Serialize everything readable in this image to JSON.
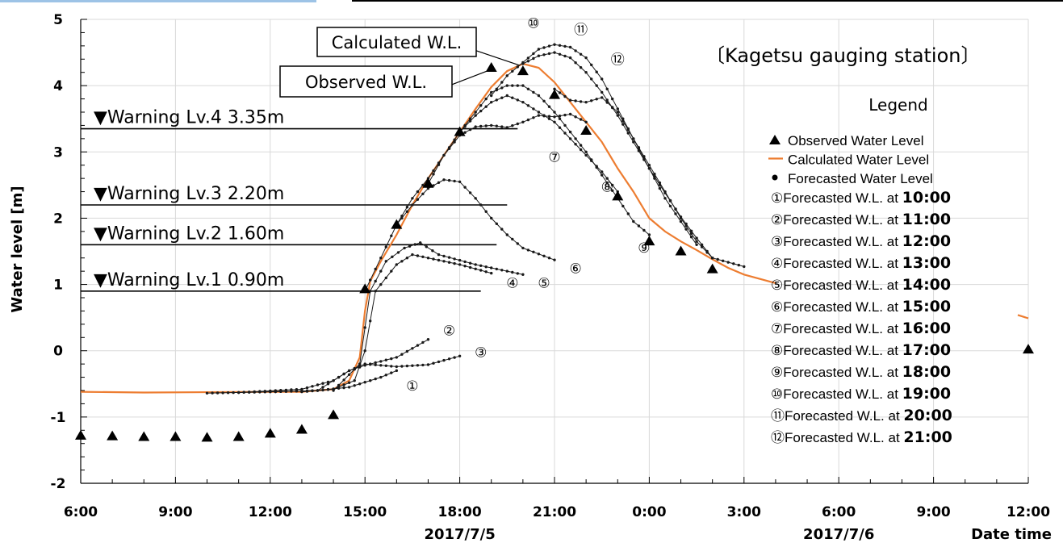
{
  "chart_data": {
    "type": "line",
    "title": "",
    "station_label": "〔Kagetsu gauging station〕",
    "ylabel": "Water level [m]",
    "xlabel": "Date time",
    "ylim": [
      -2,
      5
    ],
    "yticks": [
      -2,
      -1,
      0,
      1,
      2,
      3,
      4,
      5
    ],
    "xlim": [
      "2017-07-05 06:00",
      "2017-07-06 12:00"
    ],
    "xticks": [
      "6:00",
      "9:00",
      "12:00",
      "15:00",
      "18:00",
      "21:00",
      "0:00",
      "3:00",
      "6:00",
      "9:00",
      "12:00"
    ],
    "date_labels": [
      {
        "text": "2017/7/5",
        "at": "2017-07-05 18:00"
      },
      {
        "text": "2017/7/6",
        "at": "2017-07-06 06:00"
      }
    ],
    "grid": true,
    "warning_levels": [
      {
        "label": "▼Warning Lv.4 3.35m",
        "value": 3.35,
        "end": "2017-07-05 19:50"
      },
      {
        "label": "▼Warning Lv.3 2.20m",
        "value": 2.2,
        "end": "2017-07-05 19:30"
      },
      {
        "label": "▼Warning Lv.2 1.60m",
        "value": 1.6,
        "end": "2017-07-05 19:10"
      },
      {
        "label": "▼Warning Lv.1 0.90m",
        "value": 0.9,
        "end": "2017-07-05 18:40"
      }
    ],
    "callouts": [
      {
        "text": "Calculated W.L.",
        "x": "2017-07-05 20:00",
        "y": 4.33
      },
      {
        "text": "Observed W.L.",
        "x": "2017-07-05 19:00",
        "y": 4.25
      }
    ],
    "observed": [
      {
        "x": "2017-07-05 06:00",
        "y": -1.28
      },
      {
        "x": "2017-07-05 07:00",
        "y": -1.29
      },
      {
        "x": "2017-07-05 08:00",
        "y": -1.3
      },
      {
        "x": "2017-07-05 09:00",
        "y": -1.3
      },
      {
        "x": "2017-07-05 10:00",
        "y": -1.31
      },
      {
        "x": "2017-07-05 11:00",
        "y": -1.3
      },
      {
        "x": "2017-07-05 12:00",
        "y": -1.25
      },
      {
        "x": "2017-07-05 13:00",
        "y": -1.19
      },
      {
        "x": "2017-07-05 14:00",
        "y": -0.97
      },
      {
        "x": "2017-07-05 15:00",
        "y": 0.93
      },
      {
        "x": "2017-07-05 16:00",
        "y": 1.9
      },
      {
        "x": "2017-07-05 17:00",
        "y": 2.52
      },
      {
        "x": "2017-07-05 18:00",
        "y": 3.3
      },
      {
        "x": "2017-07-05 19:00",
        "y": 4.27
      },
      {
        "x": "2017-07-05 20:00",
        "y": 4.22
      },
      {
        "x": "2017-07-05 21:00",
        "y": 3.86
      },
      {
        "x": "2017-07-05 22:00",
        "y": 3.32
      },
      {
        "x": "2017-07-05 23:00",
        "y": 2.33
      },
      {
        "x": "2017-07-06 00:00",
        "y": 1.65
      },
      {
        "x": "2017-07-06 01:00",
        "y": 1.5
      },
      {
        "x": "2017-07-06 02:00",
        "y": 1.23
      },
      {
        "x": "2017-07-06 12:00",
        "y": 0.02
      }
    ],
    "calculated": [
      {
        "x": "2017-07-05 06:00",
        "y": -0.62
      },
      {
        "x": "2017-07-05 08:00",
        "y": -0.63
      },
      {
        "x": "2017-07-05 12:00",
        "y": -0.62
      },
      {
        "x": "2017-07-05 13:00",
        "y": -0.62
      },
      {
        "x": "2017-07-05 14:00",
        "y": -0.58
      },
      {
        "x": "2017-07-05 14:30",
        "y": -0.45
      },
      {
        "x": "2017-07-05 14:50",
        "y": -0.1
      },
      {
        "x": "2017-07-05 15:00",
        "y": 0.6
      },
      {
        "x": "2017-07-05 15:10",
        "y": 1.05
      },
      {
        "x": "2017-07-05 15:30",
        "y": 1.35
      },
      {
        "x": "2017-07-05 16:00",
        "y": 1.75
      },
      {
        "x": "2017-07-05 16:30",
        "y": 2.2
      },
      {
        "x": "2017-07-05 17:00",
        "y": 2.6
      },
      {
        "x": "2017-07-05 17:30",
        "y": 2.95
      },
      {
        "x": "2017-07-05 18:00",
        "y": 3.3
      },
      {
        "x": "2017-07-05 18:30",
        "y": 3.65
      },
      {
        "x": "2017-07-05 19:00",
        "y": 3.98
      },
      {
        "x": "2017-07-05 19:30",
        "y": 4.22
      },
      {
        "x": "2017-07-05 20:00",
        "y": 4.33
      },
      {
        "x": "2017-07-05 20:30",
        "y": 4.27
      },
      {
        "x": "2017-07-05 21:00",
        "y": 4.05
      },
      {
        "x": "2017-07-05 21:30",
        "y": 3.75
      },
      {
        "x": "2017-07-05 22:00",
        "y": 3.45
      },
      {
        "x": "2017-07-05 22:30",
        "y": 3.15
      },
      {
        "x": "2017-07-05 23:00",
        "y": 2.75
      },
      {
        "x": "2017-07-05 23:30",
        "y": 2.4
      },
      {
        "x": "2017-07-06 00:00",
        "y": 2.0
      },
      {
        "x": "2017-07-06 00:30",
        "y": 1.8
      },
      {
        "x": "2017-07-06 01:00",
        "y": 1.65
      },
      {
        "x": "2017-07-06 01:30",
        "y": 1.52
      },
      {
        "x": "2017-07-06 02:00",
        "y": 1.38
      },
      {
        "x": "2017-07-06 02:30",
        "y": 1.25
      },
      {
        "x": "2017-07-06 03:00",
        "y": 1.15
      },
      {
        "x": "2017-07-06 04:00",
        "y": 1.02
      }
    ],
    "calculated_tail": [
      {
        "x": "2017-07-06 11:40",
        "y": 0.54
      },
      {
        "x": "2017-07-06 12:00",
        "y": 0.49
      }
    ],
    "forecasts": [
      {
        "label": "①",
        "issued": "10:00",
        "label_x": "2017-07-05 16:30",
        "label_y": -0.5,
        "points": [
          [
            "2017-07-05 10:00",
            -0.64
          ],
          [
            "2017-07-05 12:00",
            -0.62
          ],
          [
            "2017-07-05 13:30",
            -0.6
          ],
          [
            "2017-07-05 14:30",
            -0.55
          ],
          [
            "2017-07-05 15:30",
            -0.4
          ],
          [
            "2017-07-05 16:00",
            -0.3
          ]
        ]
      },
      {
        "label": "②",
        "issued": "11:00",
        "label_x": "2017-07-05 17:40",
        "label_y": 0.33,
        "points": [
          [
            "2017-07-05 11:00",
            -0.63
          ],
          [
            "2017-07-05 13:00",
            -0.58
          ],
          [
            "2017-07-05 14:00",
            -0.45
          ],
          [
            "2017-07-05 14:30",
            -0.3
          ],
          [
            "2017-07-05 15:00",
            -0.22
          ],
          [
            "2017-07-05 16:00",
            -0.1
          ],
          [
            "2017-07-05 17:00",
            0.17
          ]
        ]
      },
      {
        "label": "③",
        "issued": "12:00",
        "label_x": "2017-07-05 18:40",
        "label_y": 0.0,
        "points": [
          [
            "2017-07-05 12:00",
            -0.62
          ],
          [
            "2017-07-05 13:30",
            -0.6
          ],
          [
            "2017-07-05 14:30",
            -0.3
          ],
          [
            "2017-07-05 15:00",
            -0.2
          ],
          [
            "2017-07-05 16:00",
            -0.24
          ],
          [
            "2017-07-05 17:00",
            -0.21
          ],
          [
            "2017-07-05 18:00",
            -0.08
          ]
        ]
      },
      {
        "label": "④",
        "issued": "13:00",
        "label_x": "2017-07-05 19:40",
        "label_y": 1.05,
        "points": [
          [
            "2017-07-05 13:00",
            -0.62
          ],
          [
            "2017-07-05 14:00",
            -0.58
          ],
          [
            "2017-07-05 14:40",
            -0.45
          ],
          [
            "2017-07-05 15:00",
            0.0
          ],
          [
            "2017-07-05 15:20",
            0.9
          ],
          [
            "2017-07-05 16:00",
            1.3
          ],
          [
            "2017-07-05 16:30",
            1.45
          ],
          [
            "2017-07-05 17:00",
            1.4
          ],
          [
            "2017-07-05 18:00",
            1.3
          ],
          [
            "2017-07-05 19:00",
            1.17
          ]
        ]
      },
      {
        "label": "⑤",
        "issued": "14:00",
        "label_x": "2017-07-05 20:40",
        "label_y": 1.05,
        "points": [
          [
            "2017-07-05 14:00",
            -0.6
          ],
          [
            "2017-07-05 14:50",
            -0.2
          ],
          [
            "2017-07-05 15:10",
            0.9
          ],
          [
            "2017-07-05 15:40",
            1.35
          ],
          [
            "2017-07-05 16:15",
            1.55
          ],
          [
            "2017-07-05 16:45",
            1.63
          ],
          [
            "2017-07-05 17:20",
            1.45
          ],
          [
            "2017-07-05 18:30",
            1.3
          ],
          [
            "2017-07-05 19:30",
            1.2
          ],
          [
            "2017-07-05 20:00",
            1.15
          ]
        ]
      },
      {
        "label": "⑥",
        "issued": "15:00",
        "label_x": "2017-07-05 21:40",
        "label_y": 1.27,
        "points": [
          [
            "2017-07-05 15:00",
            0.9
          ],
          [
            "2017-07-05 15:30",
            1.4
          ],
          [
            "2017-07-05 16:00",
            1.9
          ],
          [
            "2017-07-05 16:30",
            2.2
          ],
          [
            "2017-07-05 17:00",
            2.45
          ],
          [
            "2017-07-05 17:30",
            2.58
          ],
          [
            "2017-07-05 18:00",
            2.55
          ],
          [
            "2017-07-05 18:30",
            2.3
          ],
          [
            "2017-07-05 19:00",
            2.0
          ],
          [
            "2017-07-05 19:30",
            1.75
          ],
          [
            "2017-07-05 20:00",
            1.55
          ],
          [
            "2017-07-05 21:00",
            1.37
          ]
        ]
      },
      {
        "label": "⑦",
        "issued": "16:00",
        "label_x": "2017-07-05 21:00",
        "label_y": 2.95,
        "points": [
          [
            "2017-07-05 16:00",
            1.9
          ],
          [
            "2017-07-05 16:30",
            2.3
          ],
          [
            "2017-07-05 17:00",
            2.6
          ],
          [
            "2017-07-05 17:30",
            2.95
          ],
          [
            "2017-07-05 18:00",
            3.25
          ],
          [
            "2017-07-05 18:30",
            3.38
          ],
          [
            "2017-07-05 19:00",
            3.4
          ],
          [
            "2017-07-05 19:30",
            3.37
          ],
          [
            "2017-07-05 20:00",
            3.45
          ],
          [
            "2017-07-05 20:30",
            3.55
          ],
          [
            "2017-07-05 21:00",
            3.53
          ],
          [
            "2017-07-05 21:30",
            3.57
          ],
          [
            "2017-07-05 22:00",
            3.45
          ]
        ]
      },
      {
        "label": "⑧",
        "issued": "17:00",
        "label_x": "2017-07-05 22:40",
        "label_y": 2.5,
        "points": [
          [
            "2017-07-05 17:00",
            2.52
          ],
          [
            "2017-07-05 17:30",
            2.95
          ],
          [
            "2017-07-05 18:00",
            3.3
          ],
          [
            "2017-07-05 18:30",
            3.55
          ],
          [
            "2017-07-05 19:00",
            3.75
          ],
          [
            "2017-07-05 19:30",
            3.85
          ],
          [
            "2017-07-05 20:00",
            3.75
          ],
          [
            "2017-07-05 20:30",
            3.6
          ],
          [
            "2017-07-05 21:00",
            3.45
          ],
          [
            "2017-07-05 21:30",
            3.2
          ],
          [
            "2017-07-05 22:00",
            2.95
          ],
          [
            "2017-07-05 22:30",
            2.7
          ],
          [
            "2017-07-05 23:00",
            2.4
          ]
        ]
      },
      {
        "label": "⑨",
        "issued": "18:00",
        "label_x": "2017-07-05 23:50",
        "label_y": 1.58,
        "points": [
          [
            "2017-07-05 18:00",
            3.3
          ],
          [
            "2017-07-05 18:30",
            3.6
          ],
          [
            "2017-07-05 19:00",
            3.9
          ],
          [
            "2017-07-05 19:30",
            4.0
          ],
          [
            "2017-07-05 20:00",
            4.0
          ],
          [
            "2017-07-05 20:30",
            3.85
          ],
          [
            "2017-07-05 21:00",
            3.6
          ],
          [
            "2017-07-05 21:30",
            3.3
          ],
          [
            "2017-07-05 22:00",
            3.0
          ],
          [
            "2017-07-05 22:30",
            2.65
          ],
          [
            "2017-07-05 23:00",
            2.3
          ],
          [
            "2017-07-05 23:30",
            1.95
          ],
          [
            "2017-07-06 00:00",
            1.75
          ]
        ]
      },
      {
        "label": "⑩",
        "issued": "19:00",
        "label_x": "2017-07-05 20:20",
        "label_y": 4.97,
        "points": [
          [
            "2017-07-05 19:00",
            3.85
          ],
          [
            "2017-07-05 19:30",
            4.15
          ],
          [
            "2017-07-05 20:00",
            4.35
          ],
          [
            "2017-07-05 20:30",
            4.55
          ],
          [
            "2017-07-05 21:00",
            4.62
          ],
          [
            "2017-07-05 21:30",
            4.58
          ],
          [
            "2017-07-05 22:00",
            4.42
          ],
          [
            "2017-07-05 22:30",
            4.1
          ],
          [
            "2017-07-05 23:00",
            3.65
          ],
          [
            "2017-07-05 23:30",
            3.2
          ],
          [
            "2017-07-06 00:00",
            2.75
          ],
          [
            "2017-07-06 00:30",
            2.3
          ],
          [
            "2017-07-06 01:00",
            1.95
          ],
          [
            "2017-07-06 01:30",
            1.6
          ]
        ]
      },
      {
        "label": "⑪",
        "issued": "20:00",
        "label_x": "2017-07-05 21:50",
        "label_y": 4.87,
        "points": [
          [
            "2017-07-05 20:00",
            4.33
          ],
          [
            "2017-07-05 20:30",
            4.45
          ],
          [
            "2017-07-05 21:00",
            4.5
          ],
          [
            "2017-07-05 21:30",
            4.42
          ],
          [
            "2017-07-05 22:00",
            4.2
          ],
          [
            "2017-07-05 22:30",
            3.9
          ],
          [
            "2017-07-05 23:00",
            3.55
          ],
          [
            "2017-07-05 23:30",
            3.15
          ],
          [
            "2017-07-06 00:00",
            2.75
          ],
          [
            "2017-07-06 00:30",
            2.38
          ],
          [
            "2017-07-06 01:00",
            2.02
          ],
          [
            "2017-07-06 01:30",
            1.7
          ],
          [
            "2017-07-06 02:00",
            1.4
          ]
        ]
      },
      {
        "label": "⑫",
        "issued": "21:00",
        "label_x": "2017-07-05 23:00",
        "label_y": 4.42,
        "points": [
          [
            "2017-07-05 21:00",
            3.95
          ],
          [
            "2017-07-05 21:30",
            3.78
          ],
          [
            "2017-07-05 22:00",
            3.75
          ],
          [
            "2017-07-05 22:30",
            3.82
          ],
          [
            "2017-07-05 23:00",
            3.6
          ],
          [
            "2017-07-05 23:30",
            3.2
          ],
          [
            "2017-07-06 00:00",
            2.8
          ],
          [
            "2017-07-06 00:30",
            2.4
          ],
          [
            "2017-07-06 01:00",
            2.0
          ],
          [
            "2017-07-06 01:30",
            1.65
          ],
          [
            "2017-07-06 02:00",
            1.4
          ],
          [
            "2017-07-06 03:00",
            1.27
          ]
        ]
      }
    ],
    "legend": {
      "title": "Legend",
      "entries": [
        {
          "symbol": "triangle",
          "text": "Observed Water Level"
        },
        {
          "symbol": "line",
          "text": "Calculated Water Level"
        },
        {
          "symbol": "dot",
          "text": "Forecasted Water Level"
        }
      ],
      "forecast_prefix": "Forecasted W.L. at "
    },
    "colors": {
      "calculated": "#ed7d31",
      "forecast": "#1a1a1a",
      "observed": "#000000",
      "grid": "#d9d9d9",
      "accent_bar": "#9dc3e6"
    }
  }
}
